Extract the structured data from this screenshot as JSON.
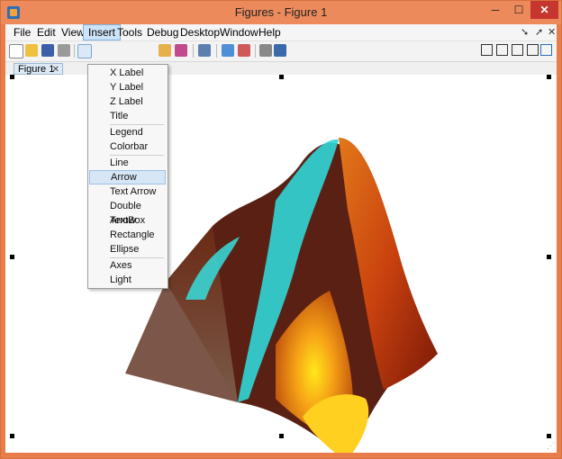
{
  "window": {
    "title": "Figures - Figure 1"
  },
  "menubar": {
    "items": [
      "File",
      "Edit",
      "View",
      "Insert",
      "Tools",
      "Debug",
      "Desktop",
      "Window",
      "Help"
    ]
  },
  "tabs": [
    {
      "label": "Figure 1"
    }
  ],
  "insert_menu": {
    "items": [
      "X Label",
      "Y Label",
      "Z Label",
      "Title",
      "Legend",
      "Colorbar",
      "Line",
      "Arrow",
      "Text Arrow",
      "Double Arrow",
      "TextBox",
      "Rectangle",
      "Ellipse",
      "Axes",
      "Light"
    ],
    "hovered": "Arrow"
  },
  "colors": {
    "title_bar": "#ec8a5c",
    "close_button": "#c7362e",
    "highlight": "#cde3f7"
  }
}
